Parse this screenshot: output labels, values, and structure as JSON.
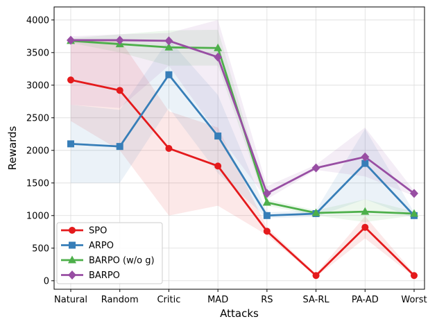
{
  "chart_data": {
    "type": "line",
    "title": "",
    "xlabel": "Attacks",
    "ylabel": "Rewards",
    "categories": [
      "Natural",
      "Random",
      "Critic",
      "MAD",
      "RS",
      "SA-RL",
      "PA-AD",
      "Worst"
    ],
    "yticks": [
      0,
      500,
      1000,
      1500,
      2000,
      2500,
      3000,
      3500,
      4000
    ],
    "ylim": [
      -130,
      4200
    ],
    "grid": true,
    "legend_position": "lower-left",
    "series": [
      {
        "name": "SPO",
        "color": "#e41a1c",
        "marker": "circle",
        "values": [
          3080,
          2920,
          2030,
          1760,
          760,
          80,
          820,
          80
        ],
        "lower": [
          2450,
          2000,
          1000,
          1150,
          700,
          60,
          650,
          60
        ],
        "upper": [
          3700,
          3700,
          2600,
          2350,
          820,
          110,
          990,
          110
        ]
      },
      {
        "name": "ARPO",
        "color": "#377eb8",
        "marker": "square",
        "values": [
          2100,
          2060,
          3160,
          2220,
          1000,
          1030,
          1800,
          1000
        ],
        "lower": [
          1500,
          1500,
          2650,
          1650,
          960,
          980,
          1250,
          960
        ],
        "upper": [
          2700,
          2620,
          3700,
          2850,
          1050,
          1080,
          2330,
          1050
        ]
      },
      {
        "name": "BARPO (w/o g)",
        "color": "#4daf4a",
        "marker": "triangle",
        "values": [
          3680,
          3630,
          3580,
          3570,
          1200,
          1040,
          1060,
          1030
        ],
        "lower": [
          3650,
          3500,
          3300,
          3300,
          1150,
          1000,
          900,
          1000
        ],
        "upper": [
          3720,
          3780,
          3840,
          3850,
          1250,
          1080,
          1250,
          1060
        ]
      },
      {
        "name": "BARPO",
        "color": "#984ea3",
        "marker": "diamond",
        "values": [
          3690,
          3690,
          3680,
          3430,
          1340,
          1730,
          1900,
          1340
        ],
        "lower": [
          2700,
          2650,
          3300,
          2250,
          1250,
          1700,
          1600,
          1300
        ],
        "upper": [
          3750,
          3780,
          3800,
          4000,
          1450,
          1780,
          2350,
          1380
        ]
      }
    ]
  }
}
